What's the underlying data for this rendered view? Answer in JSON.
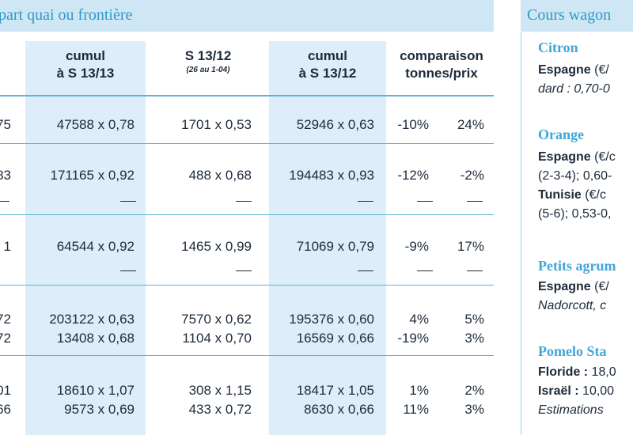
{
  "left_title": "part quai ou frontière",
  "right_title": "Cours wagon",
  "columns": [
    {
      "line1": "",
      "line2": ")",
      "sub": ""
    },
    {
      "line1": "cumul",
      "line2": "à S 13/13",
      "sub": ""
    },
    {
      "line1": "S 13/12",
      "line2": "",
      "sub": "(26 au 1-04)"
    },
    {
      "line1": "cumul",
      "line2": "à S 13/12",
      "sub": ""
    },
    {
      "line1": "comparaison",
      "line2": "tonnes/prix",
      "sub": ""
    }
  ],
  "rows": [
    {
      "c0": "75",
      "c1": "47588 x 0,78",
      "c2": "1701 x 0,53",
      "c3": "52946 x 0,63",
      "c4": "-10%",
      "c5": "24%"
    },
    {
      "c0": "83",
      "c1": "171165 x 0,92",
      "c2": "488 x 0,68",
      "c3": "194483 x 0,93",
      "c4": "-12%",
      "c5": "-2%"
    },
    {
      "c0": "1",
      "c1": "64544 x 0,92",
      "c2": "1465 x 0,99",
      "c3": "71069 x 0,79",
      "c4": "-9%",
      "c5": "17%"
    },
    {
      "c0": "72",
      "c1": "203122 x 0,63",
      "c2": "7570 x 0,62",
      "c3": "195376 x 0,60",
      "c4": "4%",
      "c5": "5%"
    },
    {
      "c0": "72",
      "c1": "13408 x 0,68",
      "c2": "1104 x 0,70",
      "c3": "16569 x 0,66",
      "c4": "-19%",
      "c5": "3%"
    },
    {
      "c0": "01",
      "c1": "18610 x 1,07",
      "c2": "308 x 1,15",
      "c3": "18417 x 1,05",
      "c4": "1%",
      "c5": "2%"
    },
    {
      "c0": "66",
      "c1": "9573 x 0,69",
      "c2": "433 x 0,72",
      "c3": "8630 x 0,66",
      "c4": "11%",
      "c5": "3%"
    }
  ],
  "right_panel": {
    "citron_head": "Citron",
    "citron_line1_b": "Espagne",
    "citron_line1": " (€/",
    "citron_line2": "dard : 0,70-0",
    "orange_head": "Orange",
    "orange_line1_b": "Espagne",
    "orange_line1": " (€/c",
    "orange_line2": "(2-3-4); 0,60-",
    "orange_line3_b": "Tunisie",
    "orange_line3": " (€/c",
    "orange_line4": "(5-6); 0,53-0,",
    "petits_head": "Petits agrum",
    "petits_line1_b": "Espagne",
    "petits_line1": " (€/",
    "petits_line2": "Nadorcott, c",
    "pomelo_head": "Pomelo Sta",
    "pomelo_line1_b": "Floride :",
    "pomelo_line1": " 18,0",
    "pomelo_line2_b": "Israël :",
    "pomelo_line2": " 10,00",
    "pomelo_line3": "Estimations"
  }
}
